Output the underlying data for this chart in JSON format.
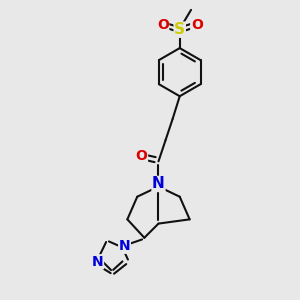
{
  "bg": "#e8e8e8",
  "bc": "#111111",
  "nc": "#0000dd",
  "oc": "#dd0000",
  "sc": "#cccc00",
  "lw": 1.5,
  "figsize": [
    3.0,
    3.0
  ],
  "dpi": 100,
  "xlim": [
    -3.0,
    4.5
  ],
  "ylim": [
    -6.5,
    4.0
  ]
}
